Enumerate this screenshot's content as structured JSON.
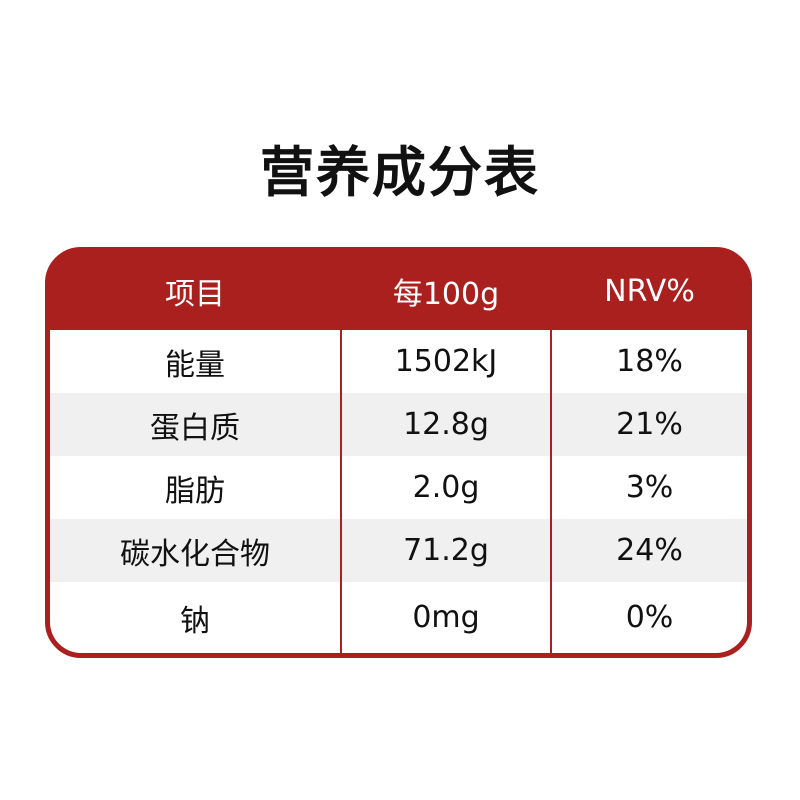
{
  "title": "营养成分表",
  "colors": {
    "accent": "#a9201f",
    "alt_row": "#f0f0f0"
  },
  "header": [
    "项目",
    "每100g",
    "NRV%"
  ],
  "rows": [
    [
      "能量",
      "1502kJ",
      "18%"
    ],
    [
      "蛋白质",
      "12.8g",
      "21%"
    ],
    [
      "脂肪",
      "2.0g",
      "3%"
    ],
    [
      "碳水化合物",
      "71.2g",
      "24%"
    ],
    [
      "钠",
      "0mg",
      "0%"
    ]
  ]
}
